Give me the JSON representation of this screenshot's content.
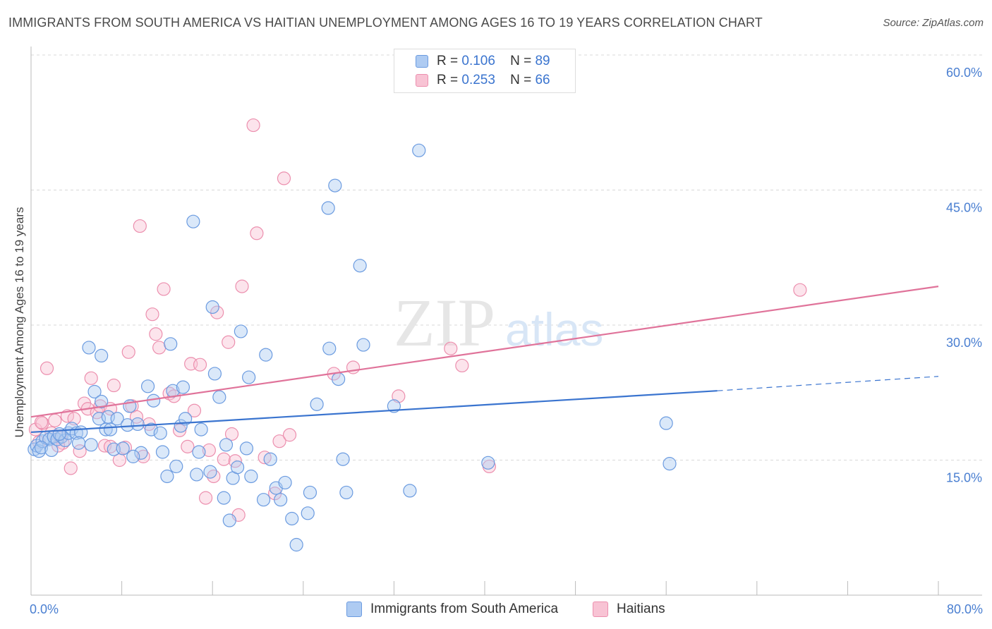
{
  "header": {
    "title": "IMMIGRANTS FROM SOUTH AMERICA VS HAITIAN UNEMPLOYMENT AMONG AGES 16 TO 19 YEARS CORRELATION CHART",
    "source": "Source: ZipAtlas.com"
  },
  "legend": {
    "rows": [
      {
        "r_label": "R =",
        "r_value": "0.106",
        "n_label": "N =",
        "n_value": "89"
      },
      {
        "r_label": "R =",
        "r_value": "0.253",
        "n_label": "N =",
        "n_value": "66"
      }
    ],
    "bottom": [
      "Immigrants from South America",
      "Haitians"
    ]
  },
  "watermark": {
    "zip": "ZIP",
    "atlas": "atlas"
  },
  "colors": {
    "blue": "#6b9be0",
    "blue_fill": "#aecbf2",
    "pink": "#ec8fae",
    "pink_fill": "#f8c3d4",
    "blue_line": "#3a74cf",
    "pink_line": "#e0739a",
    "tick": "#4a7fd1"
  },
  "chart_data": {
    "type": "scatter",
    "title": "IMMIGRANTS FROM SOUTH AMERICA VS HAITIAN UNEMPLOYMENT AMONG AGES 16 TO 19 YEARS CORRELATION CHART",
    "ylabel": "Unemployment Among Ages 16 to 19 years",
    "xlabel": "",
    "xlim": [
      0,
      80
    ],
    "ylim": [
      0,
      60
    ],
    "x_tick_labels": [
      "0.0%",
      "80.0%"
    ],
    "y_ticks": [
      15,
      30,
      45,
      60
    ],
    "y_tick_labels": [
      "15.0%",
      "30.0%",
      "45.0%",
      "60.0%"
    ],
    "grid": "horizontal dashed",
    "legend_position": "top-center",
    "series": [
      {
        "name": "Immigrants from South America",
        "r": 0.106,
        "n": 89,
        "trend": {
          "x0": 0,
          "y0": 18.1,
          "x1": 60.5,
          "y1": 22.7,
          "dashed_to_x": 80,
          "dashed_to_y": 24.3
        },
        "points": [
          [
            0.3,
            16.2
          ],
          [
            0.5,
            16.6
          ],
          [
            0.7,
            16.0
          ],
          [
            1.0,
            17.1
          ],
          [
            1.3,
            17.5
          ],
          [
            1.6,
            17.3
          ],
          [
            2.0,
            17.6
          ],
          [
            2.3,
            17.3
          ],
          [
            2.7,
            17.6
          ],
          [
            3.0,
            17.2
          ],
          [
            3.3,
            18.0
          ],
          [
            3.6,
            18.5
          ],
          [
            4.0,
            18.0
          ],
          [
            4.4,
            18.1
          ],
          [
            5.1,
            27.5
          ],
          [
            5.3,
            16.7
          ],
          [
            5.6,
            22.6
          ],
          [
            6.0,
            19.6
          ],
          [
            6.2,
            21.5
          ],
          [
            6.2,
            26.6
          ],
          [
            6.6,
            18.4
          ],
          [
            6.8,
            19.8
          ],
          [
            7.0,
            18.4
          ],
          [
            7.3,
            16.2
          ],
          [
            7.6,
            19.6
          ],
          [
            8.1,
            16.3
          ],
          [
            8.5,
            18.9
          ],
          [
            8.7,
            21.0
          ],
          [
            9.4,
            19.0
          ],
          [
            9.7,
            15.8
          ],
          [
            10.3,
            23.2
          ],
          [
            10.6,
            18.4
          ],
          [
            10.8,
            21.6
          ],
          [
            11.4,
            18.0
          ],
          [
            11.6,
            15.9
          ],
          [
            12.0,
            13.2
          ],
          [
            12.3,
            27.9
          ],
          [
            12.5,
            22.7
          ],
          [
            12.8,
            14.3
          ],
          [
            13.2,
            18.8
          ],
          [
            13.4,
            23.1
          ],
          [
            13.6,
            19.6
          ],
          [
            14.3,
            41.5
          ],
          [
            14.6,
            13.4
          ],
          [
            14.8,
            15.9
          ],
          [
            15.0,
            18.4
          ],
          [
            15.8,
            13.7
          ],
          [
            16.0,
            32.0
          ],
          [
            16.2,
            24.6
          ],
          [
            16.6,
            22.0
          ],
          [
            17.0,
            10.8
          ],
          [
            17.2,
            16.7
          ],
          [
            17.5,
            8.3
          ],
          [
            17.8,
            13.0
          ],
          [
            18.2,
            14.2
          ],
          [
            18.5,
            29.3
          ],
          [
            19.0,
            16.3
          ],
          [
            19.2,
            24.2
          ],
          [
            19.4,
            13.2
          ],
          [
            20.5,
            10.6
          ],
          [
            20.7,
            26.7
          ],
          [
            21.1,
            15.1
          ],
          [
            21.6,
            11.9
          ],
          [
            22.0,
            10.6
          ],
          [
            22.4,
            12.5
          ],
          [
            23.0,
            8.5
          ],
          [
            23.4,
            5.6
          ],
          [
            24.4,
            9.1
          ],
          [
            24.6,
            11.4
          ],
          [
            25.2,
            21.2
          ],
          [
            26.2,
            43.0
          ],
          [
            26.3,
            27.4
          ],
          [
            26.8,
            45.5
          ],
          [
            27.1,
            24.0
          ],
          [
            27.5,
            15.1
          ],
          [
            27.8,
            11.4
          ],
          [
            29.0,
            36.6
          ],
          [
            29.3,
            27.8
          ],
          [
            32.0,
            21.0
          ],
          [
            33.4,
            11.6
          ],
          [
            34.2,
            49.4
          ],
          [
            40.3,
            14.7
          ],
          [
            56.0,
            19.1
          ],
          [
            56.3,
            14.6
          ],
          [
            2.5,
            17.9
          ],
          [
            4.2,
            16.9
          ],
          [
            9.0,
            15.4
          ],
          [
            0.9,
            16.4
          ],
          [
            1.8,
            16.1
          ]
        ]
      },
      {
        "name": "Haitians",
        "r": 0.253,
        "n": 66,
        "trend": {
          "x0": 0,
          "y0": 19.8,
          "x1": 80,
          "y1": 34.3
        },
        "points": [
          [
            0.4,
            18.4
          ],
          [
            0.7,
            17.0
          ],
          [
            1.0,
            19.1
          ],
          [
            1.4,
            25.2
          ],
          [
            1.8,
            18.0
          ],
          [
            2.1,
            19.4
          ],
          [
            2.6,
            17.5
          ],
          [
            2.8,
            16.9
          ],
          [
            3.2,
            19.9
          ],
          [
            3.5,
            14.1
          ],
          [
            3.8,
            19.6
          ],
          [
            4.3,
            16.0
          ],
          [
            4.7,
            21.3
          ],
          [
            5.0,
            20.7
          ],
          [
            5.3,
            24.1
          ],
          [
            5.8,
            20.3
          ],
          [
            6.1,
            21.0
          ],
          [
            6.5,
            16.6
          ],
          [
            7.0,
            16.5
          ],
          [
            7.3,
            23.3
          ],
          [
            7.8,
            15.0
          ],
          [
            8.3,
            16.4
          ],
          [
            8.6,
            27.0
          ],
          [
            8.9,
            21.0
          ],
          [
            9.3,
            19.8
          ],
          [
            9.6,
            41.0
          ],
          [
            9.9,
            15.4
          ],
          [
            10.4,
            19.0
          ],
          [
            10.7,
            31.2
          ],
          [
            11.0,
            29.0
          ],
          [
            11.3,
            27.5
          ],
          [
            11.7,
            34.0
          ],
          [
            12.2,
            22.4
          ],
          [
            12.6,
            22.1
          ],
          [
            13.1,
            18.3
          ],
          [
            13.8,
            16.5
          ],
          [
            14.1,
            25.7
          ],
          [
            14.4,
            20.5
          ],
          [
            14.9,
            25.6
          ],
          [
            15.4,
            10.8
          ],
          [
            15.7,
            16.1
          ],
          [
            16.1,
            13.2
          ],
          [
            16.4,
            31.4
          ],
          [
            17.0,
            15.1
          ],
          [
            17.4,
            28.1
          ],
          [
            17.7,
            17.9
          ],
          [
            18.0,
            14.9
          ],
          [
            18.3,
            8.9
          ],
          [
            18.6,
            34.3
          ],
          [
            19.6,
            52.2
          ],
          [
            19.9,
            40.2
          ],
          [
            20.6,
            15.3
          ],
          [
            21.5,
            11.3
          ],
          [
            21.9,
            17.1
          ],
          [
            22.3,
            46.3
          ],
          [
            22.8,
            17.8
          ],
          [
            26.7,
            24.6
          ],
          [
            28.4,
            25.3
          ],
          [
            32.4,
            22.1
          ],
          [
            37.0,
            27.4
          ],
          [
            38.0,
            25.5
          ],
          [
            40.4,
            14.3
          ],
          [
            67.8,
            33.9
          ],
          [
            0.9,
            19.2
          ],
          [
            2.4,
            16.6
          ],
          [
            7.0,
            20.7
          ]
        ]
      }
    ]
  }
}
